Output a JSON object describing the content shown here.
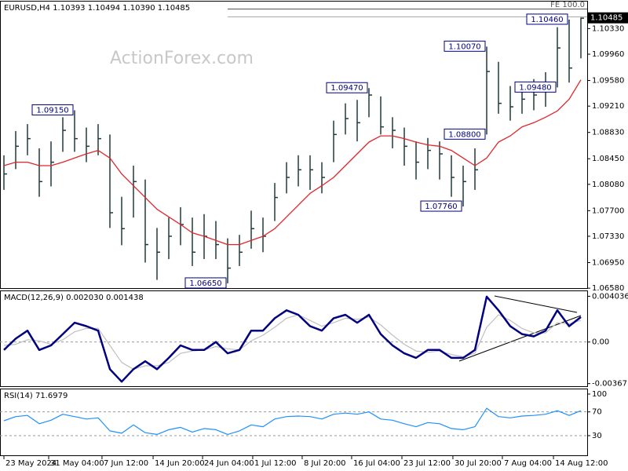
{
  "chart_data": [
    {
      "type": "ohlc",
      "title": "EURUSD,H4 1.10393 1.10494 1.10390 1.10485",
      "watermark": "ActionForex.com",
      "fe_label": "FE 100.0",
      "last_price": 1.10485,
      "color": "#203a3a",
      "xlim": [
        -0.333,
        49.533
      ],
      "ylim": [
        1.0657,
        1.1072
      ],
      "yticks": [
        {
          "value": 1.1033,
          "label": "1.10330"
        },
        {
          "value": 1.0996,
          "label": "1.09960"
        },
        {
          "value": 1.0958,
          "label": "1.09580"
        },
        {
          "value": 1.0921,
          "label": "1.09210"
        },
        {
          "value": 1.0883,
          "label": "1.08830"
        },
        {
          "value": 1.0845,
          "label": "1.08450"
        },
        {
          "value": 1.0808,
          "label": "1.08080"
        },
        {
          "value": 1.077,
          "label": "1.07700"
        },
        {
          "value": 1.0733,
          "label": "1.07330"
        },
        {
          "value": 1.0695,
          "label": "1.06950"
        },
        {
          "value": 1.0658,
          "label": "1.06580"
        }
      ],
      "high": [
        1.085,
        1.0885,
        1.0895,
        1.086,
        1.087,
        1.0905,
        1.0915,
        1.089,
        1.0895,
        1.088,
        1.079,
        1.0835,
        1.0815,
        1.0745,
        1.076,
        1.0775,
        1.076,
        1.0765,
        1.0755,
        1.073,
        1.0735,
        1.077,
        1.076,
        1.081,
        1.084,
        1.085,
        1.085,
        1.084,
        1.09,
        1.0925,
        1.093,
        1.0947,
        1.0935,
        1.0905,
        1.089,
        1.087,
        1.0875,
        1.087,
        1.085,
        1.0835,
        1.086,
        1.1007,
        1.0985,
        1.095,
        1.095,
        1.096,
        1.097,
        1.1035,
        1.1046,
        1.1049
      ],
      "low": [
        1.08,
        1.083,
        1.085,
        1.079,
        1.0805,
        1.0855,
        1.0855,
        1.084,
        1.085,
        1.0745,
        1.072,
        1.076,
        1.0695,
        1.067,
        1.07,
        1.072,
        1.069,
        1.07,
        1.07,
        1.0665,
        1.069,
        1.0715,
        1.071,
        1.0755,
        1.0795,
        1.0805,
        1.08,
        1.0795,
        1.084,
        1.088,
        1.087,
        1.0905,
        1.088,
        1.086,
        1.0835,
        1.0815,
        1.083,
        1.0815,
        1.079,
        1.0776,
        1.08,
        1.088,
        1.091,
        1.09,
        1.091,
        1.0915,
        1.092,
        1.0948,
        1.0955,
        1.099
      ],
      "close": [
        1.0823,
        1.0863,
        1.0874,
        1.0812,
        1.084,
        1.0886,
        1.0874,
        1.0863,
        1.0874,
        1.0767,
        1.0744,
        1.0812,
        1.0721,
        1.071,
        1.0733,
        1.075,
        1.071,
        1.0733,
        1.0721,
        1.0687,
        1.071,
        1.0744,
        1.0733,
        1.0789,
        1.0818,
        1.0829,
        1.0829,
        1.0818,
        1.088,
        1.0903,
        1.0897,
        1.0937,
        1.0891,
        1.0886,
        1.0863,
        1.084,
        1.0857,
        1.0852,
        1.0818,
        1.0812,
        1.0829,
        1.0971,
        1.0925,
        1.092,
        1.0931,
        1.0937,
        1.0948,
        1.1005,
        1.0976,
        1.1048
      ],
      "ma": {
        "color": "#e0262b",
        "values": [
          1.0835,
          1.084,
          1.084,
          1.0835,
          1.0835,
          1.084,
          1.0846,
          1.0852,
          1.0857,
          1.0846,
          1.0823,
          1.0806,
          1.0789,
          1.0772,
          1.0761,
          1.075,
          1.0738,
          1.0733,
          1.0727,
          1.0721,
          1.0721,
          1.0727,
          1.0733,
          1.0744,
          1.0761,
          1.0778,
          1.0795,
          1.0806,
          1.0818,
          1.0835,
          1.0852,
          1.0869,
          1.0878,
          1.0878,
          1.0874,
          1.0869,
          1.0865,
          1.0863,
          1.0857,
          1.0846,
          1.0835,
          1.0846,
          1.0869,
          1.0878,
          1.0891,
          1.0897,
          1.0905,
          1.0914,
          1.0931,
          1.0959
        ]
      },
      "annotations": [
        {
          "label": "1.09150",
          "value": 1.0915,
          "x": 6
        },
        {
          "label": "1.06650",
          "value": 1.0665,
          "x": 19
        },
        {
          "label": "1.09470",
          "value": 1.0947,
          "x": 31
        },
        {
          "label": "1.07760",
          "value": 1.0776,
          "x": 39
        },
        {
          "label": "1.10070",
          "value": 1.1007,
          "x": 41
        },
        {
          "label": "1.08800",
          "value": 1.088,
          "x": 41
        },
        {
          "label": "1.09480",
          "value": 1.0948,
          "x": 47
        },
        {
          "label": "1.10460",
          "value": 1.1046,
          "x": 48
        }
      ]
    },
    {
      "type": "line",
      "title": "MACD(12,26,9) 0.002030 0.001438",
      "xlim": [
        -0.333,
        49.533
      ],
      "ylim": [
        -0.00397,
        0.00448
      ],
      "yticks": [
        0.004036,
        {
          "value": 0,
          "label": "0.00"
        },
        -0.00367
      ],
      "levels": [
        0
      ],
      "series": [
        {
          "color": "#c0c0c0",
          "values": [
            -0.0003,
            -0.0002,
            0.0002,
            0.0001,
            -0.0002,
            0.0002,
            0.0009,
            0.0012,
            0.0012,
            -0.0003,
            -0.0018,
            -0.0024,
            -0.0021,
            -0.0021,
            -0.0018,
            -0.001,
            -0.0008,
            -0.0007,
            -0.0004,
            -0.0006,
            -0.0007,
            0.0001,
            0.0006,
            0.0013,
            0.0021,
            0.0024,
            0.0019,
            0.0014,
            0.0017,
            0.0021,
            0.002,
            0.0022,
            0.0015,
            0.0006,
            -0.0002,
            -0.0008,
            -0.0009,
            -0.0008,
            -0.0011,
            -0.0013,
            -0.001,
            0.0013,
            0.0024,
            0.0019,
            0.0012,
            0.0008,
            0.0008,
            0.0017,
            0.0016,
            0.0019
          ]
        },
        {
          "color": "#000080",
          "values": [
            -0.0007,
            0.0003,
            0.001,
            -0.0007,
            -0.0003,
            0.0007,
            0.0017,
            0.0014,
            0.001,
            -0.0024,
            -0.0035,
            -0.0024,
            -0.0017,
            -0.0024,
            -0.0014,
            -0.0003,
            -0.0007,
            -0.0007,
            0,
            -0.001,
            -0.0007,
            0.001,
            0.001,
            0.0021,
            0.0028,
            0.0024,
            0.0014,
            0.001,
            0.0021,
            0.0024,
            0.0017,
            0.0024,
            0.0007,
            -0.0003,
            -0.001,
            -0.0014,
            -0.0007,
            -0.0007,
            -0.0014,
            -0.0014,
            -0.0007,
            0.004,
            0.0028,
            0.0014,
            0.0007,
            0.0005,
            0.001,
            0.0028,
            0.0014,
            0.0022
          ]
        }
      ]
    },
    {
      "type": "line",
      "title": "RSI(14) 71.6979",
      "xlim": [
        -0.333,
        49.533
      ],
      "ylim": [
        -4.4,
        107.9
      ],
      "yticks": [
        100,
        70,
        30
      ],
      "levels": [
        70,
        30
      ],
      "series": [
        {
          "color": "#1e90ff",
          "values": [
            55,
            62,
            64,
            50,
            56,
            66,
            62,
            58,
            60,
            38,
            34,
            48,
            35,
            32,
            40,
            44,
            36,
            42,
            40,
            32,
            38,
            48,
            45,
            58,
            62,
            63,
            62,
            58,
            66,
            68,
            66,
            70,
            58,
            56,
            50,
            45,
            52,
            50,
            42,
            40,
            45,
            76,
            62,
            60,
            63,
            64,
            66,
            72,
            64,
            72
          ]
        }
      ],
      "xticks": [
        {
          "value": 0,
          "label": "23 May 2024"
        },
        {
          "value": 3.8,
          "label": "31 May 04:00"
        },
        {
          "value": 8.33,
          "label": "7 Jun 12:00"
        },
        {
          "value": 12.67,
          "label": "14 Jun 20:00"
        },
        {
          "value": 16.87,
          "label": "24 Jun 04:00"
        },
        {
          "value": 21.13,
          "label": "1 Jul 12:00"
        },
        {
          "value": 25.33,
          "label": "8 Jul 20:00"
        },
        {
          "value": 29.53,
          "label": "16 Jul 04:00"
        },
        {
          "value": 33.8,
          "label": "23 Jul 12:00"
        },
        {
          "value": 38.13,
          "label": "30 Jul 20:00"
        },
        {
          "value": 42.33,
          "label": "7 Aug 04:00"
        },
        {
          "value": 46.67,
          "label": "14 Aug 12:00"
        }
      ]
    }
  ]
}
